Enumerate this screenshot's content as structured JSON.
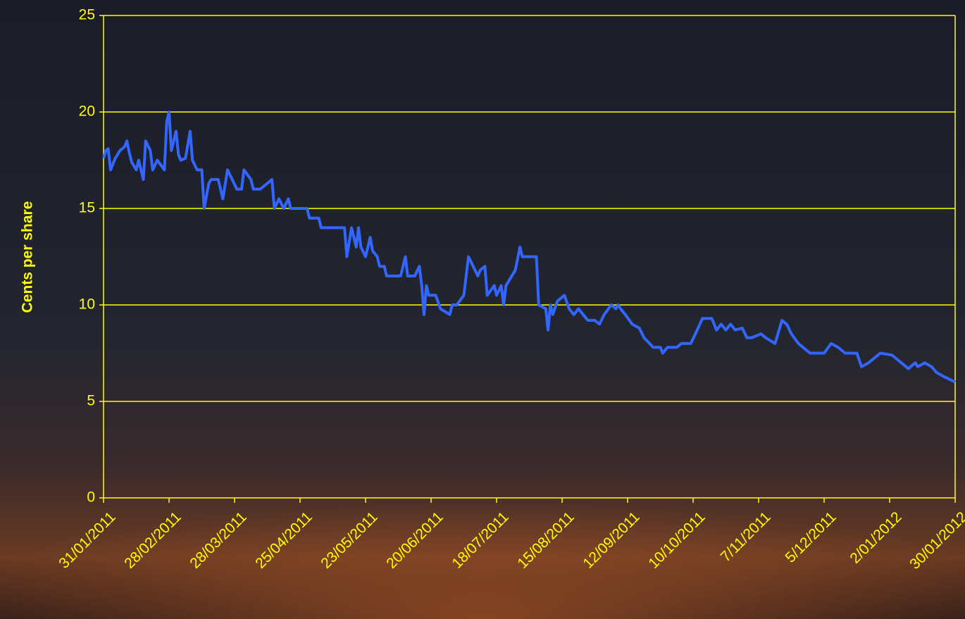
{
  "chart_data": {
    "type": "line",
    "y_label": "Cents per share",
    "x": [
      "2011-01-31",
      "2011-02-01",
      "2011-02-02",
      "2011-02-03",
      "2011-02-05",
      "2011-02-07",
      "2011-02-09",
      "2011-02-10",
      "2011-02-11",
      "2011-02-12",
      "2011-02-14",
      "2011-02-15",
      "2011-02-17",
      "2011-02-18",
      "2011-02-20",
      "2011-02-21",
      "2011-02-23",
      "2011-02-26",
      "2011-02-27",
      "2011-02-28",
      "2011-03-01",
      "2011-03-03",
      "2011-03-04",
      "2011-03-05",
      "2011-03-07",
      "2011-03-09",
      "2011-03-10",
      "2011-03-12",
      "2011-03-14",
      "2011-03-15",
      "2011-03-17",
      "2011-03-18",
      "2011-03-21",
      "2011-03-23",
      "2011-03-25",
      "2011-03-27",
      "2011-03-29",
      "2011-03-31",
      "2011-04-01",
      "2011-04-04",
      "2011-04-05",
      "2011-04-08",
      "2011-04-11",
      "2011-04-13",
      "2011-04-14",
      "2011-04-16",
      "2011-04-18",
      "2011-04-20",
      "2011-04-21",
      "2011-04-28",
      "2011-04-29",
      "2011-05-03",
      "2011-05-04",
      "2011-05-14",
      "2011-05-15",
      "2011-05-17",
      "2011-05-19",
      "2011-05-20",
      "2011-05-21",
      "2011-05-23",
      "2011-05-25",
      "2011-05-26",
      "2011-05-28",
      "2011-05-29",
      "2011-05-31",
      "2011-06-01",
      "2011-06-07",
      "2011-06-09",
      "2011-06-10",
      "2011-06-13",
      "2011-06-15",
      "2011-06-16",
      "2011-06-17",
      "2011-06-18",
      "2011-06-19",
      "2011-06-22",
      "2011-06-24",
      "2011-06-28",
      "2011-06-29",
      "2011-07-01",
      "2011-07-04",
      "2011-07-06",
      "2011-07-08",
      "2011-07-10",
      "2011-07-11",
      "2011-07-13",
      "2011-07-14",
      "2011-07-17",
      "2011-07-18",
      "2011-07-20",
      "2011-07-21",
      "2011-07-22",
      "2011-07-26",
      "2011-07-28",
      "2011-07-29",
      "2011-08-04",
      "2011-08-05",
      "2011-08-08",
      "2011-08-09",
      "2011-08-10",
      "2011-08-11",
      "2011-08-13",
      "2011-08-16",
      "2011-08-18",
      "2011-08-20",
      "2011-08-22",
      "2011-08-24",
      "2011-08-26",
      "2011-08-29",
      "2011-08-31",
      "2011-09-02",
      "2011-09-05",
      "2011-09-07",
      "2011-09-08",
      "2011-09-09",
      "2011-09-11",
      "2011-09-14",
      "2011-09-17",
      "2011-09-19",
      "2011-09-23",
      "2011-09-26",
      "2011-09-27",
      "2011-09-29",
      "2011-10-03",
      "2011-10-05",
      "2011-10-09",
      "2011-10-11",
      "2011-10-14",
      "2011-10-18",
      "2011-10-20",
      "2011-10-22",
      "2011-10-24",
      "2011-10-26",
      "2011-10-28",
      "2011-10-31",
      "2011-11-02",
      "2011-11-04",
      "2011-11-08",
      "2011-11-10",
      "2011-11-14",
      "2011-11-17",
      "2011-11-19",
      "2011-11-21",
      "2011-11-24",
      "2011-11-26",
      "2011-11-29",
      "2011-12-05",
      "2011-12-08",
      "2011-12-11",
      "2011-12-14",
      "2011-12-19",
      "2011-12-21",
      "2011-12-24",
      "2011-12-29",
      "2012-01-03",
      "2012-01-07",
      "2012-01-10",
      "2012-01-13",
      "2012-01-14",
      "2012-01-17",
      "2012-01-20",
      "2012-01-22",
      "2012-01-25",
      "2012-01-30"
    ],
    "series": [
      {
        "color": "#3366ff",
        "values": [
          17.6,
          18.0,
          18.1,
          17.0,
          17.6,
          18.0,
          18.2,
          18.5,
          17.9,
          17.4,
          17.0,
          17.5,
          16.5,
          18.5,
          18.0,
          17.0,
          17.5,
          17.0,
          19.5,
          20.0,
          18.0,
          19.0,
          17.8,
          17.5,
          17.6,
          19.0,
          17.5,
          17.0,
          17.0,
          15.0,
          16.3,
          16.5,
          16.5,
          15.5,
          17.0,
          16.5,
          16.0,
          16.0,
          17.0,
          16.5,
          16.0,
          16.0,
          16.3,
          16.5,
          15.0,
          15.5,
          15.0,
          15.5,
          15.0,
          15.0,
          14.5,
          14.5,
          14.0,
          14.0,
          12.5,
          14.0,
          13.0,
          14.0,
          13.0,
          12.5,
          13.5,
          12.8,
          12.5,
          12.0,
          12.0,
          11.5,
          11.5,
          12.5,
          11.5,
          11.5,
          12.0,
          11.0,
          9.5,
          11.0,
          10.5,
          10.5,
          9.8,
          9.5,
          10.0,
          10.0,
          10.5,
          12.5,
          12.0,
          11.5,
          11.8,
          12.0,
          10.5,
          11.0,
          10.5,
          11.0,
          10.0,
          11.0,
          11.8,
          13.0,
          12.5,
          12.5,
          10.0,
          9.8,
          8.7,
          10.0,
          9.5,
          10.2,
          10.5,
          9.8,
          9.5,
          9.8,
          9.5,
          9.2,
          9.2,
          9.0,
          9.5,
          10.0,
          9.8,
          10.0,
          9.8,
          9.5,
          9.0,
          8.8,
          8.3,
          7.8,
          7.8,
          7.5,
          7.8,
          7.8,
          8.0,
          8.0,
          8.5,
          9.3,
          9.3,
          8.7,
          9.0,
          8.7,
          9.0,
          8.7,
          8.8,
          8.3,
          8.3,
          8.5,
          8.3,
          8.0,
          9.2,
          9.0,
          8.5,
          8.0,
          7.8,
          7.5,
          7.5,
          8.0,
          7.8,
          7.5,
          7.5,
          6.8,
          7.0,
          7.5,
          7.4,
          7.0,
          6.7,
          7.0,
          6.8,
          7.0,
          6.8,
          6.5,
          6.3,
          6.0
        ]
      }
    ],
    "xlim": [
      "2011-01-31",
      "2012-01-30"
    ],
    "xticks": [
      {
        "value": "2011-01-31",
        "label": "31/01/2011"
      },
      {
        "value": "2011-02-28",
        "label": "28/02/2011"
      },
      {
        "value": "2011-03-28",
        "label": "28/03/2011"
      },
      {
        "value": "2011-04-25",
        "label": "25/04/2011"
      },
      {
        "value": "2011-05-23",
        "label": "23/05/2011"
      },
      {
        "value": "2011-06-20",
        "label": "20/06/2011"
      },
      {
        "value": "2011-07-18",
        "label": "18/07/2011"
      },
      {
        "value": "2011-08-15",
        "label": "15/08/2011"
      },
      {
        "value": "2011-09-12",
        "label": "12/09/2011"
      },
      {
        "value": "2011-10-10",
        "label": "10/10/2011"
      },
      {
        "value": "2011-11-07",
        "label": "7/11/2011"
      },
      {
        "value": "2011-12-05",
        "label": "5/12/2011"
      },
      {
        "value": "2012-01-02",
        "label": "2/01/2012"
      },
      {
        "value": "2012-01-30",
        "label": "30/01/2012"
      }
    ],
    "ylim": [
      0,
      25
    ],
    "yticks": [
      0,
      5,
      10,
      15,
      20,
      25
    ],
    "grid": true,
    "axis_color": "#ffff00"
  }
}
